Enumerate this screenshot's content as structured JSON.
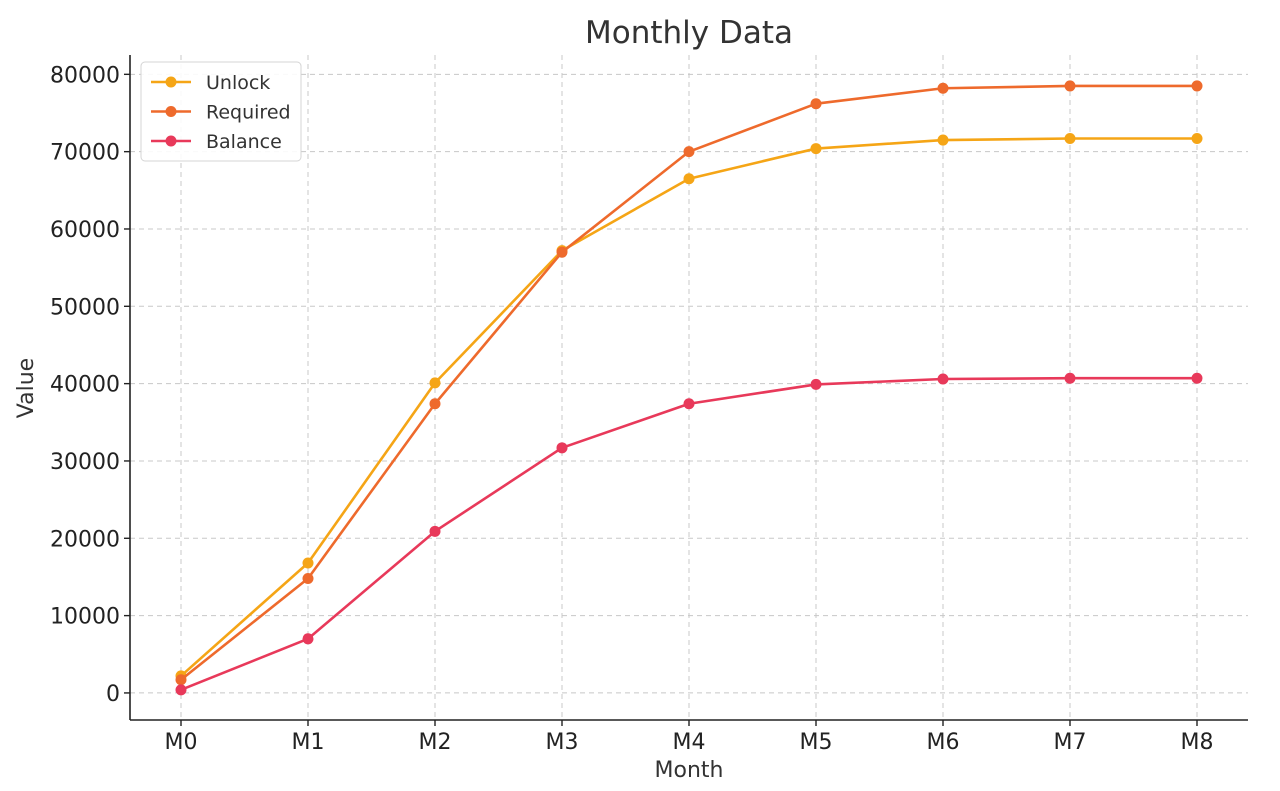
{
  "chart_data": {
    "type": "line",
    "title": "Monthly Data",
    "xlabel": "Month",
    "ylabel": "Value",
    "categories": [
      "M0",
      "M1",
      "M2",
      "M3",
      "M4",
      "M5",
      "M6",
      "M7",
      "M8"
    ],
    "ylim": [
      -3500,
      82500
    ],
    "yticks": [
      0,
      10000,
      20000,
      30000,
      40000,
      50000,
      60000,
      70000,
      80000
    ],
    "grid": true,
    "legend_position": "top-left",
    "series": [
      {
        "name": "Unlock",
        "color": "#F5A516",
        "values": [
          2200,
          16800,
          40100,
          57200,
          66500,
          70400,
          71500,
          71700,
          71700
        ]
      },
      {
        "name": "Required",
        "color": "#EE6A2C",
        "values": [
          1700,
          14800,
          37400,
          57000,
          70000,
          76200,
          78200,
          78500,
          78500
        ]
      },
      {
        "name": "Balance",
        "color": "#E8395A",
        "values": [
          400,
          7000,
          20900,
          31700,
          37400,
          39900,
          40600,
          40700,
          40700
        ]
      }
    ]
  }
}
